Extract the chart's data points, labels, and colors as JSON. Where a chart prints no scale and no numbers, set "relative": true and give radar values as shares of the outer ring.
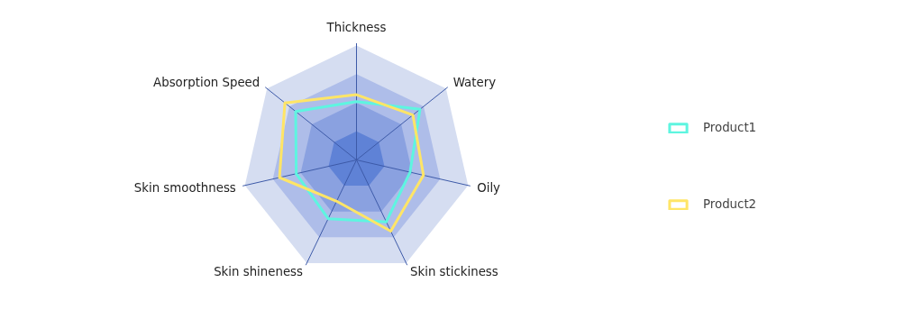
{
  "chart_data": {
    "type": "radar",
    "relative": true,
    "legend": "right",
    "categories": [
      "Thickness",
      "Watery",
      "Oily",
      "Skin stickiness",
      "Skin shineness",
      "Skin smoothness",
      "Absorption Speed"
    ],
    "series": [
      {
        "name": "Product1",
        "color": "#5ef5e0",
        "values": [
          0.51,
          0.71,
          0.48,
          0.6,
          0.57,
          0.54,
          0.68
        ]
      },
      {
        "name": "Product2",
        "color": "#ffe566",
        "values": [
          0.57,
          0.63,
          0.6,
          0.69,
          0.4,
          0.69,
          0.8
        ]
      }
    ]
  }
}
